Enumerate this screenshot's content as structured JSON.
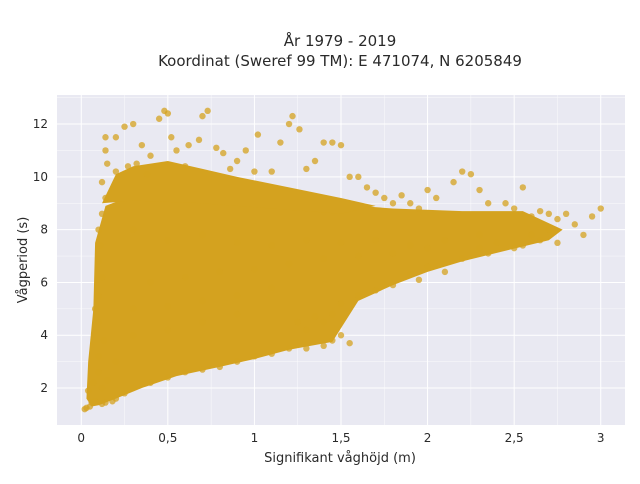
{
  "chart_data": {
    "type": "scatter",
    "title_lines": [
      "År 1979 - 2019",
      "Koordinat (Sweref 99 TM): E 471074, N 6205849"
    ],
    "xlabel": "Signifikant våghöjd (m)",
    "ylabel": "Vågperiod (s)",
    "xlim": [
      -0.14,
      3.14
    ],
    "ylim": [
      0.6,
      13.1
    ],
    "x_ticks": [
      0,
      0.5,
      1,
      1.5,
      2,
      2.5,
      3
    ],
    "x_tick_labels": [
      "0",
      "0,5",
      "1",
      "1,5",
      "2",
      "2,5",
      "3"
    ],
    "y_ticks": [
      2,
      4,
      6,
      8,
      10,
      12
    ],
    "y_tick_labels": [
      "2",
      "4",
      "6",
      "8",
      "10",
      "12"
    ],
    "grid": true,
    "legend": false,
    "colors": {
      "marker": "#d4a21f",
      "plot_background": "#e9e9f2",
      "grid": "#ffffff"
    },
    "series": [
      {
        "points": [
          [
            0.02,
            1.2
          ],
          [
            0.03,
            1.25
          ],
          [
            0.05,
            1.3
          ],
          [
            0.06,
            1.45
          ],
          [
            0.08,
            1.5
          ],
          [
            0.04,
            1.9
          ],
          [
            0.07,
            2.2
          ],
          [
            0.1,
            2.6
          ],
          [
            0.12,
            2.0
          ],
          [
            0.15,
            2.3
          ],
          [
            0.1,
            3.2
          ],
          [
            0.13,
            3.8
          ],
          [
            0.1,
            4.5
          ],
          [
            0.08,
            5.0
          ],
          [
            0.1,
            5.5
          ],
          [
            0.12,
            6.2
          ],
          [
            0.1,
            6.8
          ],
          [
            0.11,
            7.4
          ],
          [
            0.1,
            8.0
          ],
          [
            0.12,
            8.6
          ],
          [
            0.14,
            9.2
          ],
          [
            0.12,
            9.8
          ],
          [
            0.15,
            10.5
          ],
          [
            0.14,
            11.0
          ],
          [
            0.14,
            11.5
          ],
          [
            0.2,
            11.5
          ],
          [
            0.25,
            11.9
          ],
          [
            0.3,
            12.0
          ],
          [
            0.35,
            11.2
          ],
          [
            0.4,
            10.8
          ],
          [
            0.2,
            10.2
          ],
          [
            0.27,
            10.4
          ],
          [
            0.32,
            10.5
          ],
          [
            0.38,
            10.1
          ],
          [
            0.45,
            12.2
          ],
          [
            0.48,
            12.5
          ],
          [
            0.5,
            12.4
          ],
          [
            0.52,
            11.5
          ],
          [
            0.55,
            11.0
          ],
          [
            0.6,
            10.4
          ],
          [
            0.62,
            11.2
          ],
          [
            0.68,
            11.4
          ],
          [
            0.7,
            12.3
          ],
          [
            0.73,
            12.5
          ],
          [
            0.78,
            11.1
          ],
          [
            0.82,
            10.9
          ],
          [
            0.86,
            10.3
          ],
          [
            0.9,
            10.6
          ],
          [
            0.95,
            11.0
          ],
          [
            1.0,
            10.2
          ],
          [
            1.02,
            11.6
          ],
          [
            1.1,
            10.2
          ],
          [
            1.15,
            11.3
          ],
          [
            1.2,
            12.0
          ],
          [
            1.22,
            12.3
          ],
          [
            1.26,
            11.8
          ],
          [
            1.3,
            10.3
          ],
          [
            1.35,
            10.6
          ],
          [
            1.4,
            11.3
          ],
          [
            1.45,
            11.3
          ],
          [
            1.5,
            11.2
          ],
          [
            1.55,
            10.0
          ],
          [
            1.6,
            10.0
          ],
          [
            1.65,
            9.6
          ],
          [
            1.7,
            9.4
          ],
          [
            1.75,
            9.2
          ],
          [
            1.8,
            9.0
          ],
          [
            1.85,
            9.3
          ],
          [
            1.9,
            9.0
          ],
          [
            1.95,
            8.8
          ],
          [
            2.0,
            9.5
          ],
          [
            2.05,
            9.2
          ],
          [
            2.15,
            9.8
          ],
          [
            2.2,
            10.2
          ],
          [
            2.25,
            10.1
          ],
          [
            2.3,
            9.5
          ],
          [
            2.35,
            9.0
          ],
          [
            2.45,
            9.0
          ],
          [
            2.5,
            8.8
          ],
          [
            2.55,
            9.6
          ],
          [
            2.6,
            8.5
          ],
          [
            2.65,
            8.7
          ],
          [
            2.7,
            8.6
          ],
          [
            2.75,
            8.4
          ],
          [
            2.8,
            8.6
          ],
          [
            2.85,
            8.2
          ],
          [
            2.9,
            7.8
          ],
          [
            2.95,
            8.5
          ],
          [
            3.0,
            8.8
          ],
          [
            2.65,
            7.6
          ],
          [
            2.7,
            8.0
          ],
          [
            2.75,
            7.5
          ],
          [
            2.6,
            7.8
          ],
          [
            2.55,
            7.4
          ],
          [
            2.5,
            7.3
          ],
          [
            2.4,
            7.5
          ],
          [
            2.35,
            7.1
          ],
          [
            2.3,
            7.3
          ],
          [
            2.2,
            6.9
          ],
          [
            2.1,
            6.4
          ],
          [
            2.0,
            6.6
          ],
          [
            1.95,
            6.1
          ],
          [
            1.9,
            6.3
          ],
          [
            1.8,
            5.9
          ],
          [
            1.7,
            5.7
          ],
          [
            1.6,
            5.5
          ],
          [
            1.5,
            5.2
          ],
          [
            1.45,
            4.8
          ],
          [
            1.4,
            4.5
          ],
          [
            1.35,
            4.7
          ],
          [
            1.3,
            4.2
          ],
          [
            1.25,
            4.5
          ],
          [
            1.5,
            4.0
          ],
          [
            1.55,
            3.7
          ],
          [
            1.45,
            3.8
          ],
          [
            1.4,
            3.6
          ],
          [
            1.3,
            3.5
          ],
          [
            1.2,
            3.5
          ],
          [
            1.1,
            3.3
          ],
          [
            1.0,
            3.2
          ],
          [
            0.9,
            3.0
          ],
          [
            0.8,
            2.8
          ],
          [
            0.7,
            2.7
          ],
          [
            0.6,
            2.6
          ],
          [
            0.5,
            2.4
          ],
          [
            0.4,
            2.2
          ],
          [
            0.3,
            2.0
          ],
          [
            0.25,
            1.8
          ],
          [
            0.2,
            1.6
          ],
          [
            0.18,
            1.5
          ],
          [
            0.14,
            1.45
          ],
          [
            0.12,
            1.4
          ],
          [
            0.3,
            8.0
          ],
          [
            0.5,
            7.6
          ],
          [
            0.7,
            7.8
          ],
          [
            0.9,
            7.5
          ],
          [
            1.1,
            7.4
          ],
          [
            1.3,
            7.6
          ],
          [
            1.5,
            7.5
          ],
          [
            1.7,
            7.6
          ],
          [
            1.9,
            7.4
          ],
          [
            2.1,
            7.6
          ],
          [
            2.3,
            7.8
          ],
          [
            0.4,
            6.0
          ],
          [
            0.6,
            6.2
          ],
          [
            0.8,
            6.4
          ],
          [
            1.0,
            6.5
          ],
          [
            1.2,
            6.7
          ],
          [
            1.4,
            6.9
          ],
          [
            1.6,
            7.0
          ],
          [
            1.8,
            7.1
          ],
          [
            2.0,
            7.3
          ],
          [
            0.3,
            5.0
          ],
          [
            0.5,
            5.1
          ],
          [
            0.7,
            5.3
          ],
          [
            0.9,
            5.5
          ],
          [
            1.1,
            5.8
          ],
          [
            0.3,
            4.0
          ],
          [
            0.5,
            4.2
          ],
          [
            0.7,
            4.5
          ],
          [
            0.9,
            4.8
          ],
          [
            0.2,
            3.0
          ]
        ]
      }
    ]
  }
}
